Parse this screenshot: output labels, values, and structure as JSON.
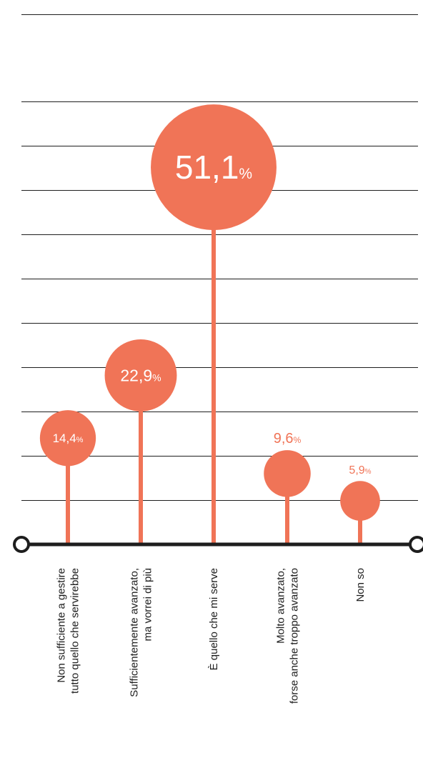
{
  "chart_data": {
    "type": "bar",
    "style": "lollipop",
    "categories": [
      [
        "Non sufficiente a gestire",
        "tutto quello che servirebbe"
      ],
      [
        "Sufficientemente avanzato,",
        "ma vorrei di più"
      ],
      [
        "È quello che mi serve"
      ],
      [
        "Molto avanzato,",
        "forse anche troppo avanzato"
      ],
      [
        "Non so"
      ]
    ],
    "values": [
      14.4,
      22.9,
      51.1,
      9.6,
      5.9
    ],
    "value_labels": [
      "14,4",
      "22,9",
      "51,1",
      "9,6",
      "5,9"
    ],
    "unit": "%",
    "ylim": [
      0,
      60
    ],
    "grid": true,
    "colors": {
      "accent": "#f07457",
      "axis": "#1e1e1e",
      "grid": "#1e1e1e",
      "text": "#1e1e1e"
    }
  }
}
